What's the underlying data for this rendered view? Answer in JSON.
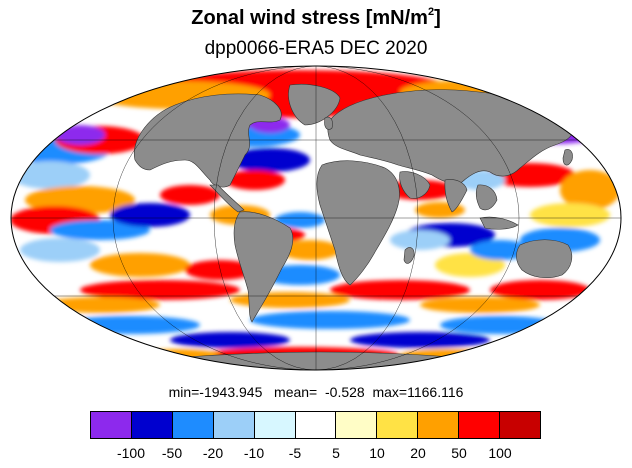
{
  "figure": {
    "title_main": "Zonal wind stress [mN/m",
    "title_sup": "2",
    "title_close": "]",
    "subtitle": "dpp0066-ERA5  DEC 2020"
  },
  "stats": {
    "min": "min=-1943.945",
    "mean": "mean=  -0.528",
    "max": "max=1166.116"
  },
  "colorbar": {
    "colors": [
      "#8d29ed",
      "#0000cf",
      "#1e8cff",
      "#9ccff8",
      "#d7f7ff",
      "#ffffff",
      "#fffdc6",
      "#ffe245",
      "#ffa000",
      "#ff0000",
      "#c80000"
    ],
    "labels": [
      "-100",
      "-50",
      "-20",
      "-10",
      "-5",
      "5",
      "10",
      "20",
      "50",
      "100"
    ]
  },
  "map": {
    "projection": "mollweide",
    "land_color": "#8c8c8c",
    "ocean_default": "#ffffff"
  }
}
